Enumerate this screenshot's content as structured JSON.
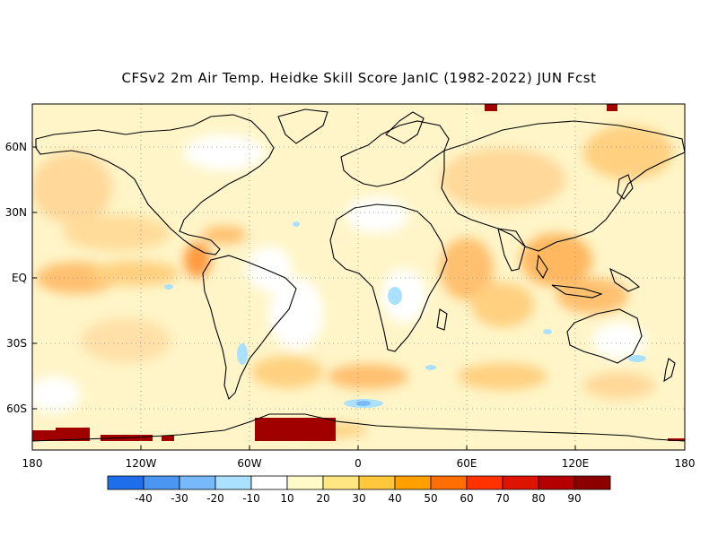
{
  "title": "CFSv2 2m Air Temp. Heidke Skill Score JanIC (1982-2022) JUN Fcst",
  "lon_labels": [
    "180",
    "120W",
    "60W",
    "0",
    "60E",
    "120E",
    "180"
  ],
  "lat_labels": [
    "60N",
    "30N",
    "EQ",
    "30S",
    "60S"
  ],
  "colorbar": {
    "labels": [
      "-40",
      "-30",
      "-20",
      "-10",
      "10",
      "20",
      "30",
      "40",
      "50",
      "60",
      "70",
      "80",
      "90"
    ],
    "colors": [
      "#1e6eeb",
      "#4b96f0",
      "#78b9fa",
      "#aae1ff",
      "#ffffff",
      "#fffac8",
      "#ffe683",
      "#ffc83c",
      "#ffa000",
      "#ff6e00",
      "#ff3200",
      "#dc1400",
      "#b40000",
      "#8c0000"
    ]
  }
}
